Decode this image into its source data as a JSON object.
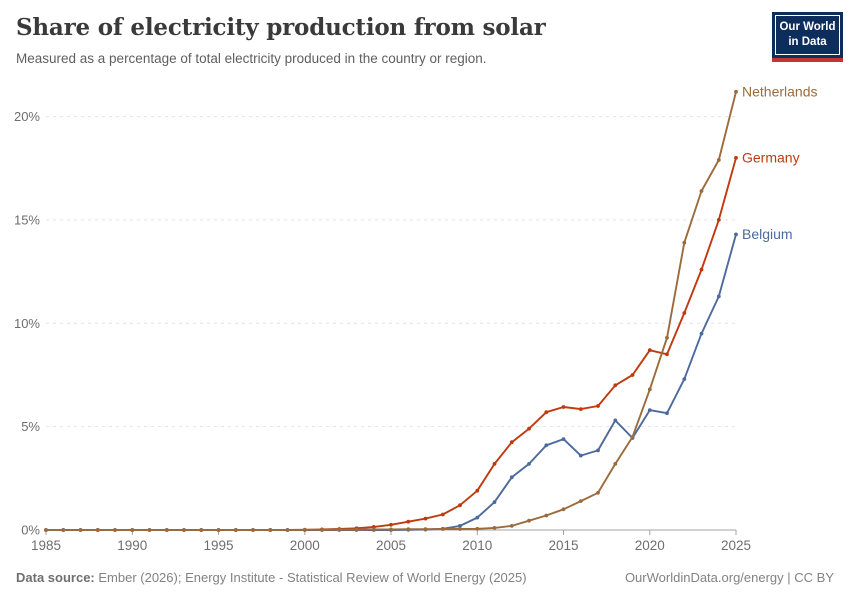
{
  "header": {
    "title": "Share of electricity production from solar",
    "subtitle": "Measured as a percentage of total electricity produced in the country or region."
  },
  "logo": {
    "line1": "Our World",
    "line2": "in Data"
  },
  "chart_data": {
    "type": "line",
    "title": "Share of electricity production from solar",
    "subtitle": "Measured as a percentage of total electricity produced in the country or region.",
    "x": [
      1985,
      1986,
      1987,
      1988,
      1989,
      1990,
      1991,
      1992,
      1993,
      1994,
      1995,
      1996,
      1997,
      1998,
      1999,
      2000,
      2001,
      2002,
      2003,
      2004,
      2005,
      2006,
      2007,
      2008,
      2009,
      2010,
      2011,
      2012,
      2013,
      2014,
      2015,
      2016,
      2017,
      2018,
      2019,
      2020,
      2021,
      2022,
      2023,
      2024,
      2025
    ],
    "series": [
      {
        "name": "Netherlands",
        "color": "#9C6B3C",
        "values": [
          0,
          0,
          0,
          0,
          0,
          0,
          0,
          0,
          0,
          0,
          0,
          0,
          0,
          0,
          0,
          0.01,
          0.01,
          0.02,
          0.02,
          0.03,
          0.03,
          0.04,
          0.04,
          0.05,
          0.05,
          0.06,
          0.1,
          0.2,
          0.45,
          0.7,
          1.0,
          1.4,
          1.8,
          3.2,
          4.5,
          6.8,
          9.3,
          13.9,
          16.4,
          17.9,
          21.2
        ]
      },
      {
        "name": "Germany",
        "color": "#BF3A0E",
        "values": [
          0,
          0,
          0,
          0,
          0,
          0,
          0,
          0,
          0,
          0,
          0,
          0,
          0,
          0,
          0,
          0.01,
          0.03,
          0.05,
          0.08,
          0.15,
          0.25,
          0.4,
          0.55,
          0.75,
          1.2,
          1.9,
          3.2,
          4.25,
          4.9,
          5.7,
          5.95,
          5.85,
          6.0,
          7.0,
          7.5,
          8.7,
          8.5,
          10.5,
          12.6,
          15.0,
          18.0
        ]
      },
      {
        "name": "Belgium",
        "color": "#4C6A9C",
        "values": [
          0,
          0,
          0,
          0,
          0,
          0,
          0,
          0,
          0,
          0,
          0,
          0,
          0,
          0,
          0,
          0,
          0,
          0,
          0,
          0,
          0,
          0.01,
          0.02,
          0.06,
          0.2,
          0.6,
          1.35,
          2.55,
          3.2,
          4.1,
          4.4,
          3.6,
          3.85,
          5.3,
          4.45,
          5.8,
          5.65,
          7.3,
          9.5,
          11.3,
          14.3
        ]
      }
    ],
    "xlabel": "",
    "ylabel": "",
    "xticks": [
      1985,
      1990,
      1995,
      2000,
      2005,
      2010,
      2015,
      2020,
      2025
    ],
    "yticks": [
      0,
      5,
      10,
      15,
      20
    ],
    "ytick_labels": [
      "0%",
      "5%",
      "10%",
      "15%",
      "20%"
    ],
    "ylim": [
      0,
      21.5
    ],
    "xlim": [
      1985,
      2025
    ],
    "grid": "horizontal-dashed",
    "legend_position": "line-end-labels"
  },
  "footer": {
    "source_label": "Data source:",
    "source_text": " Ember (2026); Energy Institute - Statistical Review of World Energy (2025)",
    "link_text": "OurWorldinData.org/energy | CC BY"
  }
}
